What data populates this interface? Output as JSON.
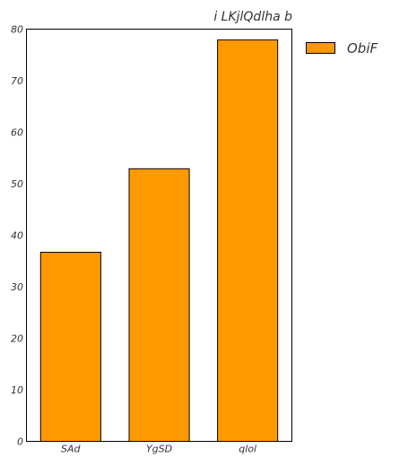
{
  "chart_data": {
    "type": "bar",
    "title": "i LKjlQdlha b",
    "xlabel": "",
    "ylabel": "",
    "categories": [
      "SAd",
      "YgSD",
      "qlol"
    ],
    "series": [
      {
        "name": "ObiF",
        "values": [
          36.7,
          52.9,
          77.9
        ],
        "color": "#ff9900"
      }
    ],
    "ylim": [
      0,
      80
    ],
    "yticks": [
      0,
      10,
      20,
      30,
      40,
      50,
      60,
      70,
      80
    ],
    "grid": false,
    "legend_position": "outside-top-right"
  }
}
